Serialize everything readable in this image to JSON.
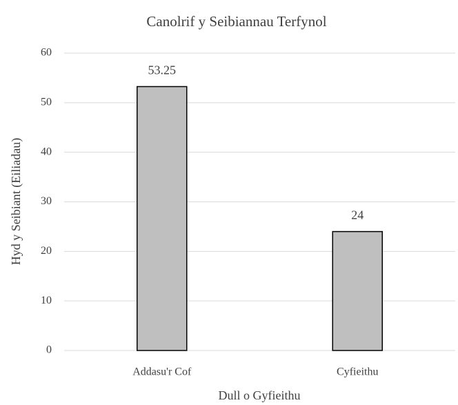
{
  "chart_data": {
    "type": "bar",
    "title": "Canolrif y Seibiannau Terfynol",
    "x_label": "Dull o Gyfieithu",
    "y_label": "Hyd y Seibiant (Eiliadau)",
    "categories": [
      "Addasu'r Cof",
      "Cyfieithu"
    ],
    "values": [
      53.25,
      24
    ],
    "color": "#bfbfbf",
    "ylim": [
      0,
      60
    ],
    "yticks": [
      0,
      10,
      20,
      30,
      40,
      50,
      60
    ],
    "grid": true
  }
}
